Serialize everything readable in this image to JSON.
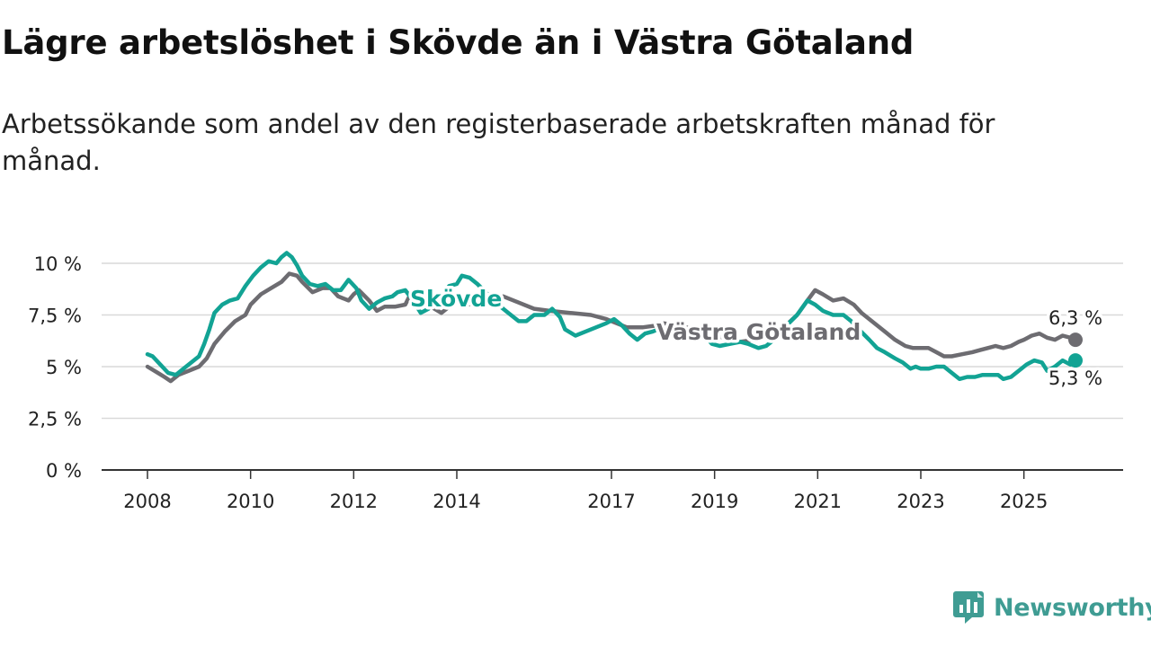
{
  "title": "Lägre arbetslöshet i Skövde än i Västra Götaland",
  "subtitle": "Arbetssökande som andel av den registerbaserade arbetskraften månad för månad.",
  "brand": {
    "name": "Newsworthy",
    "icon": "newsworthy-logo-icon",
    "color": "#3f9c93"
  },
  "colors": {
    "skovde": "#12a394",
    "vg": "#6d6c71",
    "grid": "#d9d9d9",
    "axis": "#333333",
    "text": "#222222"
  },
  "chart_data": {
    "type": "line",
    "title": "Lägre arbetslöshet i Skövde än i Västra Götaland",
    "xlabel": "",
    "ylabel": "",
    "xlim": [
      2008.0,
      2026.35
    ],
    "ylim": [
      0,
      10
    ],
    "grid": true,
    "y_ticks": [
      {
        "value": 0,
        "label": "0 %"
      },
      {
        "value": 2.5,
        "label": "2,5 %"
      },
      {
        "value": 5,
        "label": "5 %"
      },
      {
        "value": 7.5,
        "label": "7,5 %"
      },
      {
        "value": 10,
        "label": "10 %"
      }
    ],
    "x_ticks": [
      {
        "value": 2008,
        "label": "2008"
      },
      {
        "value": 2010,
        "label": "2010"
      },
      {
        "value": 2012,
        "label": "2012"
      },
      {
        "value": 2014,
        "label": "2014"
      },
      {
        "value": 2017,
        "label": "2017"
      },
      {
        "value": 2019,
        "label": "2019"
      },
      {
        "value": 2021,
        "label": "2021"
      },
      {
        "value": 2023,
        "label": "2023"
      },
      {
        "value": 2025,
        "label": "2025"
      }
    ],
    "series": [
      {
        "name": "Västra Götaland",
        "label": "Västra Götaland",
        "color": "#6d6c71",
        "end_label": "6,3 %",
        "points": [
          [
            2008.0,
            5.0
          ],
          [
            2008.2,
            4.7
          ],
          [
            2008.33,
            4.5
          ],
          [
            2008.45,
            4.3
          ],
          [
            2008.6,
            4.6
          ],
          [
            2008.8,
            4.8
          ],
          [
            2009.0,
            5.0
          ],
          [
            2009.15,
            5.4
          ],
          [
            2009.3,
            6.1
          ],
          [
            2009.5,
            6.7
          ],
          [
            2009.7,
            7.2
          ],
          [
            2009.9,
            7.5
          ],
          [
            2010.0,
            8.0
          ],
          [
            2010.2,
            8.5
          ],
          [
            2010.4,
            8.8
          ],
          [
            2010.6,
            9.1
          ],
          [
            2010.75,
            9.5
          ],
          [
            2010.9,
            9.4
          ],
          [
            2011.0,
            9.1
          ],
          [
            2011.2,
            8.6
          ],
          [
            2011.4,
            8.8
          ],
          [
            2011.55,
            8.8
          ],
          [
            2011.7,
            8.4
          ],
          [
            2011.9,
            8.2
          ],
          [
            2012.0,
            8.5
          ],
          [
            2012.1,
            8.7
          ],
          [
            2012.3,
            8.2
          ],
          [
            2012.45,
            7.7
          ],
          [
            2012.6,
            7.9
          ],
          [
            2012.8,
            7.9
          ],
          [
            2013.0,
            8.0
          ],
          [
            2013.1,
            8.5
          ],
          [
            2013.3,
            8.3
          ],
          [
            2013.5,
            7.9
          ],
          [
            2013.7,
            7.6
          ],
          [
            2013.9,
            8.0
          ],
          [
            2014.0,
            8.1
          ],
          [
            2014.3,
            8.0
          ],
          [
            2014.6,
            8.2
          ],
          [
            2014.9,
            8.4
          ],
          [
            2015.2,
            8.1
          ],
          [
            2015.5,
            7.8
          ],
          [
            2015.8,
            7.7
          ],
          [
            2016.2,
            7.6
          ],
          [
            2016.6,
            7.5
          ],
          [
            2016.9,
            7.3
          ],
          [
            2017.0,
            7.2
          ],
          [
            2017.3,
            6.9
          ],
          [
            2017.6,
            6.9
          ],
          [
            2017.9,
            7.0
          ],
          [
            2018.0,
            7.1
          ],
          [
            2018.3,
            7.0
          ],
          [
            2018.6,
            6.8
          ],
          [
            2018.9,
            6.5
          ],
          [
            2019.2,
            6.4
          ],
          [
            2019.5,
            6.2
          ],
          [
            2019.8,
            6.3
          ],
          [
            2020.0,
            6.4
          ],
          [
            2020.3,
            6.8
          ],
          [
            2020.6,
            7.5
          ],
          [
            2020.8,
            8.2
          ],
          [
            2020.95,
            8.7
          ],
          [
            2021.1,
            8.5
          ],
          [
            2021.3,
            8.2
          ],
          [
            2021.5,
            8.3
          ],
          [
            2021.7,
            8.0
          ],
          [
            2021.85,
            7.6
          ],
          [
            2022.0,
            7.3
          ],
          [
            2022.15,
            7.0
          ],
          [
            2022.3,
            6.7
          ],
          [
            2022.5,
            6.3
          ],
          [
            2022.7,
            6.0
          ],
          [
            2022.85,
            5.9
          ],
          [
            2023.0,
            5.9
          ],
          [
            2023.15,
            5.9
          ],
          [
            2023.3,
            5.7
          ],
          [
            2023.45,
            5.5
          ],
          [
            2023.6,
            5.5
          ],
          [
            2023.8,
            5.6
          ],
          [
            2024.0,
            5.7
          ],
          [
            2024.15,
            5.8
          ],
          [
            2024.3,
            5.9
          ],
          [
            2024.45,
            6.0
          ],
          [
            2024.6,
            5.9
          ],
          [
            2024.75,
            6.0
          ],
          [
            2024.9,
            6.2
          ],
          [
            2025.0,
            6.3
          ],
          [
            2025.15,
            6.5
          ],
          [
            2025.3,
            6.6
          ],
          [
            2025.45,
            6.4
          ],
          [
            2025.6,
            6.3
          ],
          [
            2025.75,
            6.5
          ],
          [
            2025.9,
            6.4
          ],
          [
            2026.0,
            6.3
          ]
        ]
      },
      {
        "name": "Skövde",
        "label": "Skövde",
        "color": "#12a394",
        "end_label": "5,3 %",
        "points": [
          [
            2008.0,
            5.6
          ],
          [
            2008.1,
            5.5
          ],
          [
            2008.25,
            5.1
          ],
          [
            2008.4,
            4.7
          ],
          [
            2008.55,
            4.6
          ],
          [
            2008.7,
            4.9
          ],
          [
            2008.85,
            5.2
          ],
          [
            2009.0,
            5.5
          ],
          [
            2009.1,
            6.1
          ],
          [
            2009.2,
            6.8
          ],
          [
            2009.3,
            7.6
          ],
          [
            2009.45,
            8.0
          ],
          [
            2009.6,
            8.2
          ],
          [
            2009.75,
            8.3
          ],
          [
            2009.9,
            8.9
          ],
          [
            2010.05,
            9.4
          ],
          [
            2010.2,
            9.8
          ],
          [
            2010.35,
            10.1
          ],
          [
            2010.5,
            10.0
          ],
          [
            2010.6,
            10.3
          ],
          [
            2010.7,
            10.5
          ],
          [
            2010.8,
            10.3
          ],
          [
            2010.9,
            9.9
          ],
          [
            2011.0,
            9.4
          ],
          [
            2011.15,
            9.0
          ],
          [
            2011.3,
            8.9
          ],
          [
            2011.45,
            9.0
          ],
          [
            2011.6,
            8.7
          ],
          [
            2011.75,
            8.7
          ],
          [
            2011.9,
            9.2
          ],
          [
            2012.05,
            8.8
          ],
          [
            2012.15,
            8.2
          ],
          [
            2012.3,
            7.8
          ],
          [
            2012.45,
            8.1
          ],
          [
            2012.6,
            8.3
          ],
          [
            2012.75,
            8.4
          ],
          [
            2012.85,
            8.6
          ],
          [
            2013.0,
            8.7
          ],
          [
            2013.15,
            8.2
          ],
          [
            2013.3,
            7.6
          ],
          [
            2013.45,
            7.8
          ],
          [
            2013.6,
            8.2
          ],
          [
            2013.75,
            8.5
          ],
          [
            2013.85,
            8.9
          ],
          [
            2014.0,
            9.0
          ],
          [
            2014.1,
            9.4
          ],
          [
            2014.25,
            9.3
          ],
          [
            2014.4,
            9.0
          ],
          [
            2014.6,
            8.5
          ],
          [
            2014.8,
            8.0
          ],
          [
            2015.0,
            7.6
          ],
          [
            2015.2,
            7.2
          ],
          [
            2015.35,
            7.2
          ],
          [
            2015.5,
            7.5
          ],
          [
            2015.7,
            7.5
          ],
          [
            2015.85,
            7.8
          ],
          [
            2016.0,
            7.4
          ],
          [
            2016.1,
            6.8
          ],
          [
            2016.3,
            6.5
          ],
          [
            2016.5,
            6.7
          ],
          [
            2016.7,
            6.9
          ],
          [
            2016.9,
            7.1
          ],
          [
            2017.05,
            7.3
          ],
          [
            2017.2,
            7.0
          ],
          [
            2017.35,
            6.6
          ],
          [
            2017.5,
            6.3
          ],
          [
            2017.65,
            6.6
          ],
          [
            2017.8,
            6.7
          ],
          [
            2018.0,
            6.9
          ],
          [
            2018.2,
            6.7
          ],
          [
            2018.35,
            6.5
          ],
          [
            2018.5,
            6.3
          ],
          [
            2018.65,
            6.4
          ],
          [
            2018.8,
            6.5
          ],
          [
            2018.95,
            6.1
          ],
          [
            2019.1,
            6.0
          ],
          [
            2019.3,
            6.1
          ],
          [
            2019.5,
            6.2
          ],
          [
            2019.65,
            6.1
          ],
          [
            2019.85,
            5.9
          ],
          [
            2020.0,
            6.0
          ],
          [
            2020.2,
            6.4
          ],
          [
            2020.4,
            7.0
          ],
          [
            2020.6,
            7.5
          ],
          [
            2020.8,
            8.2
          ],
          [
            2020.95,
            8.0
          ],
          [
            2021.1,
            7.7
          ],
          [
            2021.3,
            7.5
          ],
          [
            2021.5,
            7.5
          ],
          [
            2021.65,
            7.2
          ],
          [
            2021.8,
            6.8
          ],
          [
            2022.0,
            6.3
          ],
          [
            2022.15,
            5.9
          ],
          [
            2022.3,
            5.7
          ],
          [
            2022.5,
            5.4
          ],
          [
            2022.65,
            5.2
          ],
          [
            2022.8,
            4.9
          ],
          [
            2022.9,
            5.0
          ],
          [
            2023.0,
            4.9
          ],
          [
            2023.15,
            4.9
          ],
          [
            2023.3,
            5.0
          ],
          [
            2023.45,
            5.0
          ],
          [
            2023.6,
            4.7
          ],
          [
            2023.75,
            4.4
          ],
          [
            2023.9,
            4.5
          ],
          [
            2024.05,
            4.5
          ],
          [
            2024.2,
            4.6
          ],
          [
            2024.35,
            4.6
          ],
          [
            2024.5,
            4.6
          ],
          [
            2024.6,
            4.4
          ],
          [
            2024.75,
            4.5
          ],
          [
            2024.9,
            4.8
          ],
          [
            2025.05,
            5.1
          ],
          [
            2025.2,
            5.3
          ],
          [
            2025.35,
            5.2
          ],
          [
            2025.45,
            4.8
          ],
          [
            2025.6,
            5.0
          ],
          [
            2025.75,
            5.3
          ],
          [
            2025.9,
            5.1
          ],
          [
            2026.0,
            5.3
          ]
        ]
      }
    ]
  }
}
